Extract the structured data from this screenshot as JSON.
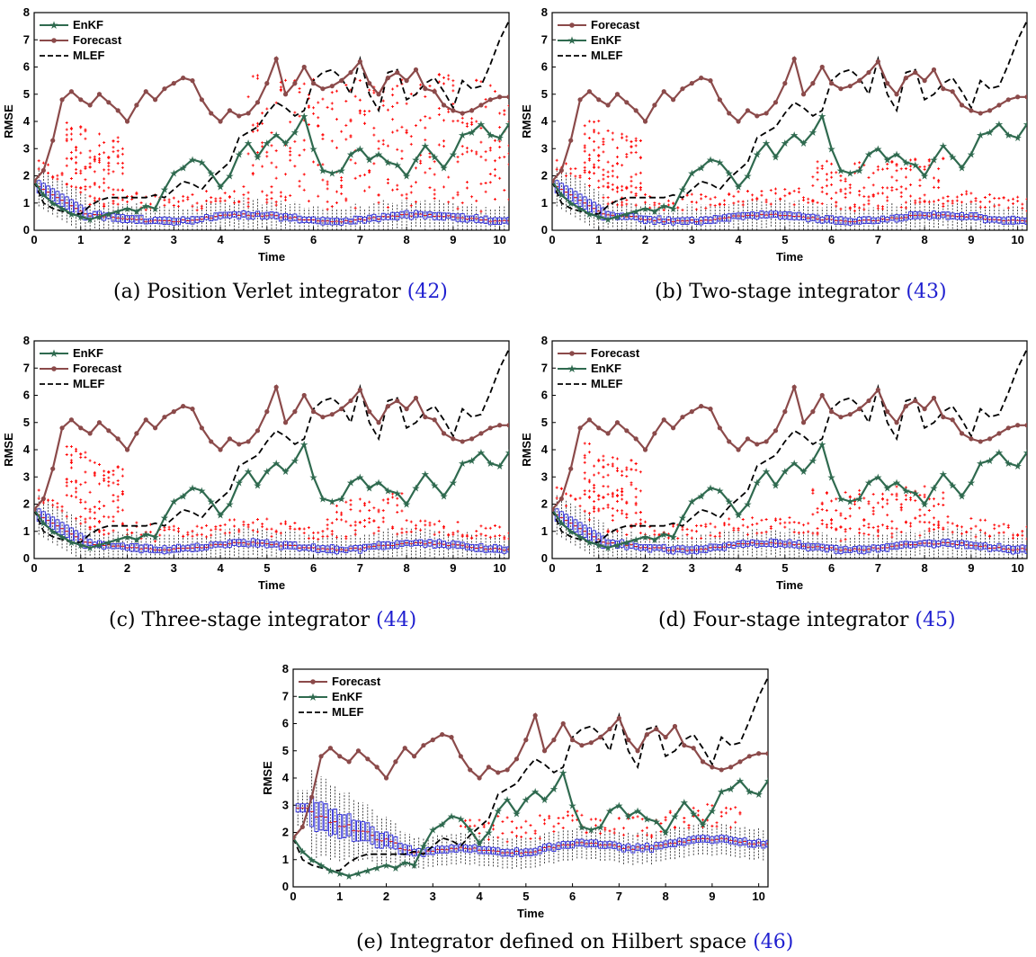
{
  "colors": {
    "forecast": "#8b4a4a",
    "enkf": "#2f6a4f",
    "mlef": "#000000",
    "box": "#2a2ad8",
    "outlier": "#ff0000",
    "whisker": "#000000"
  },
  "chart_data": [
    {
      "type": "line",
      "id": "a",
      "caption": "(a) Position Verlet integrator",
      "caption_ref": "(42)",
      "xlabel": "Time",
      "ylabel": "RMSE",
      "xlim": [
        0,
        10.2
      ],
      "ylim": [
        0,
        8
      ],
      "xticks": [
        "0",
        "1",
        "2",
        "3",
        "4",
        "5",
        "6",
        "7",
        "8",
        "9",
        "10"
      ],
      "yticks": [
        "0",
        "1",
        "2",
        "3",
        "4",
        "5",
        "6",
        "7",
        "8"
      ],
      "legend": [
        "EnKF",
        "Forecast",
        "MLEF"
      ],
      "legend_position": "top-left",
      "boxplot": "ensemble RMSE boxes",
      "outlier_profile": "wide"
    },
    {
      "type": "line",
      "id": "b",
      "caption": "(b) Two-stage integrator",
      "caption_ref": "(43)",
      "xlabel": "Time",
      "ylabel": "RMSE",
      "xlim": [
        0,
        10.2
      ],
      "ylim": [
        0,
        8
      ],
      "xticks": [
        "0",
        "1",
        "2",
        "3",
        "4",
        "5",
        "6",
        "7",
        "8",
        "9",
        "10"
      ],
      "yticks": [
        "0",
        "1",
        "2",
        "3",
        "4",
        "5",
        "6",
        "7",
        "8"
      ],
      "legend": [
        "Forecast",
        "EnKF",
        "MLEF"
      ],
      "legend_position": "top-left",
      "boxplot": "ensemble RMSE boxes",
      "outlier_profile": "medium"
    },
    {
      "type": "line",
      "id": "c",
      "caption": "(c) Three-stage integrator",
      "caption_ref": "(44)",
      "xlabel": "Time",
      "ylabel": "RMSE",
      "xlim": [
        0,
        10.2
      ],
      "ylim": [
        0,
        8
      ],
      "xticks": [
        "0",
        "1",
        "2",
        "3",
        "4",
        "5",
        "6",
        "7",
        "8",
        "9",
        "10"
      ],
      "yticks": [
        "0",
        "1",
        "2",
        "3",
        "4",
        "5",
        "6",
        "7",
        "8"
      ],
      "legend": [
        "EnKF",
        "Forecast",
        "MLEF"
      ],
      "legend_position": "top-left",
      "boxplot": "ensemble RMSE boxes",
      "outlier_profile": "narrow"
    },
    {
      "type": "line",
      "id": "d",
      "caption": "(d) Four-stage integrator",
      "caption_ref": "(45)",
      "xlabel": "Time",
      "ylabel": "RMSE",
      "xlim": [
        0,
        10.2
      ],
      "ylim": [
        0,
        8
      ],
      "xticks": [
        "0",
        "1",
        "2",
        "3",
        "4",
        "5",
        "6",
        "7",
        "8",
        "9",
        "10"
      ],
      "yticks": [
        "0",
        "1",
        "2",
        "3",
        "4",
        "5",
        "6",
        "7",
        "8"
      ],
      "legend": [
        "Forecast",
        "EnKF",
        "MLEF"
      ],
      "legend_position": "top-left",
      "boxplot": "ensemble RMSE boxes",
      "outlier_profile": "medium"
    },
    {
      "type": "line",
      "id": "e",
      "caption": "(e) Integrator defined on Hilbert space",
      "caption_ref": "(46)",
      "xlabel": "Time",
      "ylabel": "RMSE",
      "xlim": [
        0,
        10.2
      ],
      "ylim": [
        0,
        8
      ],
      "xticks": [
        "0",
        "1",
        "2",
        "3",
        "4",
        "5",
        "6",
        "7",
        "8",
        "9",
        "10"
      ],
      "yticks": [
        "0",
        "1",
        "2",
        "3",
        "4",
        "5",
        "6",
        "7",
        "8"
      ],
      "legend": [
        "Forecast",
        "EnKF",
        "MLEF"
      ],
      "legend_position": "top-left",
      "boxplot": "ensemble RMSE boxes",
      "outlier_profile": "hilbert"
    }
  ],
  "series_data": {
    "t": [
      0,
      0.2,
      0.4,
      0.6,
      0.8,
      1.0,
      1.2,
      1.4,
      1.6,
      1.8,
      2.0,
      2.2,
      2.4,
      2.6,
      2.8,
      3.0,
      3.2,
      3.4,
      3.6,
      3.8,
      4.0,
      4.2,
      4.4,
      4.6,
      4.8,
      5.0,
      5.2,
      5.4,
      5.6,
      5.8,
      6.0,
      6.2,
      6.4,
      6.6,
      6.8,
      7.0,
      7.2,
      7.4,
      7.6,
      7.8,
      8.0,
      8.2,
      8.4,
      8.6,
      8.8,
      9.0,
      9.2,
      9.4,
      9.6,
      9.8,
      10.0,
      10.2
    ],
    "forecast": [
      1.8,
      2.2,
      3.3,
      4.8,
      5.1,
      4.8,
      4.6,
      5.0,
      4.7,
      4.4,
      4.0,
      4.6,
      5.1,
      4.8,
      5.2,
      5.4,
      5.6,
      5.5,
      4.8,
      4.3,
      4.0,
      4.4,
      4.2,
      4.3,
      4.7,
      5.4,
      6.3,
      5.0,
      5.4,
      6.0,
      5.4,
      5.2,
      5.3,
      5.5,
      5.8,
      6.2,
      5.4,
      5.0,
      5.6,
      5.8,
      5.5,
      5.9,
      5.2,
      5.1,
      4.6,
      4.4,
      4.3,
      4.4,
      4.6,
      4.8,
      4.9,
      4.9
    ],
    "enkf": [
      1.8,
      1.3,
      1.0,
      0.8,
      0.6,
      0.5,
      0.4,
      0.5,
      0.6,
      0.7,
      0.8,
      0.7,
      0.9,
      0.8,
      1.5,
      2.1,
      2.3,
      2.6,
      2.5,
      2.1,
      1.6,
      2.0,
      2.8,
      3.2,
      2.7,
      3.2,
      3.5,
      3.2,
      3.6,
      4.2,
      3.0,
      2.2,
      2.1,
      2.2,
      2.8,
      3.0,
      2.6,
      2.8,
      2.5,
      2.4,
      2.0,
      2.6,
      3.1,
      2.7,
      2.3,
      2.8,
      3.5,
      3.6,
      3.9,
      3.5,
      3.4,
      3.9
    ],
    "mlef": [
      1.8,
      1.0,
      0.8,
      0.7,
      0.6,
      0.6,
      0.9,
      1.1,
      1.2,
      1.2,
      1.2,
      1.2,
      1.2,
      1.3,
      1.2,
      1.5,
      1.8,
      1.7,
      1.5,
      1.9,
      2.2,
      2.5,
      3.4,
      3.6,
      3.8,
      4.3,
      4.7,
      4.5,
      4.2,
      4.4,
      5.5,
      5.8,
      5.9,
      5.6,
      5.0,
      6.3,
      5.0,
      4.4,
      5.8,
      5.9,
      4.8,
      5.0,
      5.4,
      5.6,
      5.1,
      4.5,
      5.5,
      5.2,
      5.3,
      6.1,
      7.0,
      7.7
    ]
  }
}
